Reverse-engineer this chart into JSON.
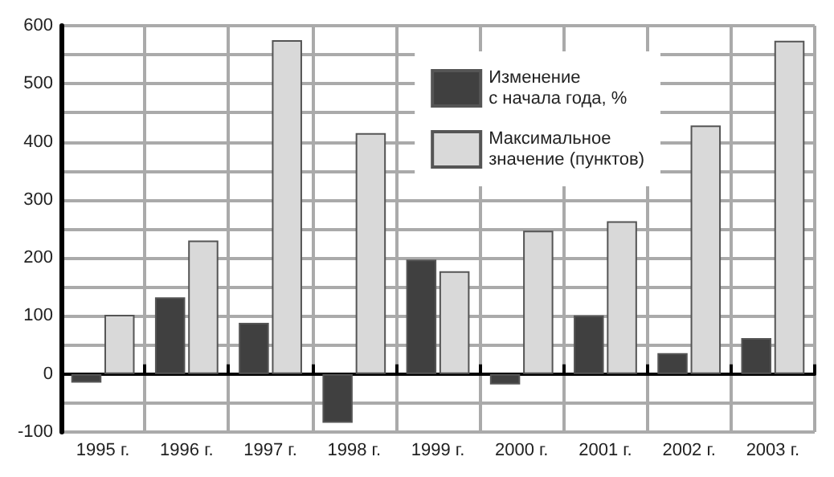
{
  "chart_data": {
    "type": "bar",
    "categories": [
      "1995 г.",
      "1996 г.",
      "1997 г.",
      "1998 г.",
      "1999 г.",
      "2000 г.",
      "2001 г.",
      "2002 г.",
      "2003 г."
    ],
    "series": [
      {
        "name": "Изменение с начала года, %",
        "color": "#404040",
        "values": [
          -15,
          132,
          88,
          -84,
          197,
          -18,
          101,
          36,
          62
        ]
      },
      {
        "name": "Максимальное значение (пунктов)",
        "color": "#d9d9d9",
        "values": [
          102,
          230,
          575,
          415,
          177,
          247,
          263,
          428,
          574
        ]
      }
    ],
    "ylim": [
      -100,
      600
    ],
    "yticks": [
      -100,
      {
        "value": -50,
        "label": null
      },
      0,
      {
        "value": 50,
        "label": null
      },
      100,
      {
        "value": 150,
        "label": null
      },
      200,
      {
        "value": 250,
        "label": null
      },
      300,
      {
        "value": 350,
        "label": null
      },
      400,
      {
        "value": 450,
        "label": null
      },
      500,
      {
        "value": 550,
        "label": null
      },
      600
    ],
    "grid": true,
    "legend": "top right"
  }
}
